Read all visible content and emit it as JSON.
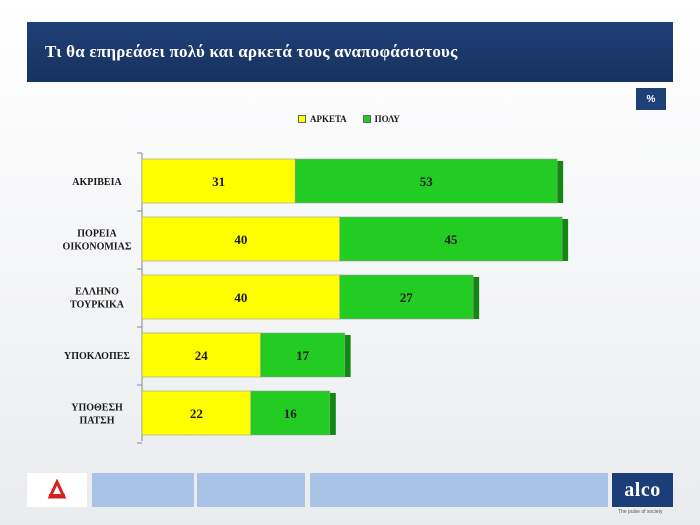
{
  "header": {
    "title": "Τι θα επηρεάσει πολύ και αρκετά τους αναποφάσιστους"
  },
  "unit_badge": "%",
  "colors": {
    "arketa": "#ffff00",
    "poly": "#22cc22",
    "poly_shadow": "#118811",
    "title_bg": "#1f3f78"
  },
  "chart_data": {
    "type": "bar",
    "orientation": "horizontal",
    "stacked": true,
    "categories": [
      [
        "ΑΚΡΙΒΕΙΑ"
      ],
      [
        "ΠΟΡΕΙΑ",
        "ΟΙΚΟΝΟΜΙΑΣ"
      ],
      [
        "ΕΛΛΗΝΟ",
        "ΤΟΥΡΚΙΚΑ"
      ],
      [
        "ΥΠΟΚΛΟΠΕΣ"
      ],
      [
        "ΥΠΟΘΕΣΗ",
        "ΠΑΤΣΗ"
      ]
    ],
    "series": [
      {
        "name": "ΑΡΚΕΤΑ",
        "values": [
          31,
          40,
          40,
          24,
          22
        ]
      },
      {
        "name": "ΠΟΛΥ",
        "values": [
          53,
          45,
          27,
          17,
          16
        ]
      }
    ],
    "xlim": [
      0,
      87
    ],
    "legend": "top"
  },
  "footer": {
    "brand": "alco",
    "tagline": "The pulse of society"
  }
}
